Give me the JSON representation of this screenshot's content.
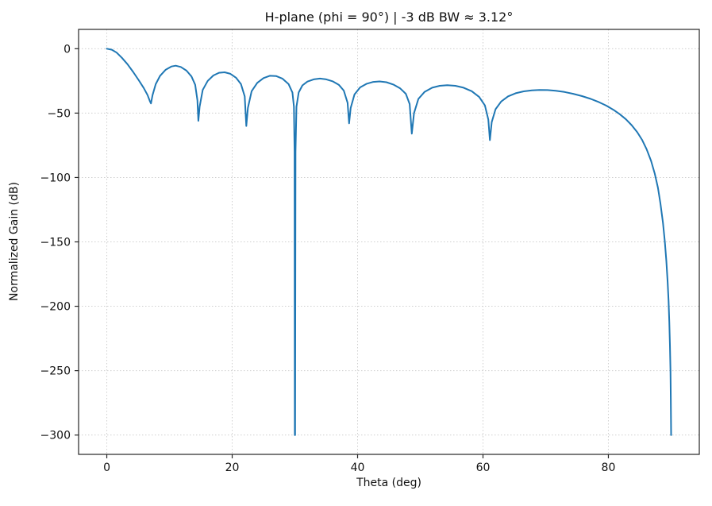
{
  "chart_data": {
    "type": "line",
    "title": "H-plane (phi = 90°)  |  -3 dB BW ≈ 3.12°",
    "xlabel": "Theta (deg)",
    "ylabel": "Normalized Gain (dB)",
    "xlim": [
      -4.5,
      94.5
    ],
    "ylim": [
      -315,
      15
    ],
    "xticks": [
      0,
      20,
      40,
      60,
      80
    ],
    "yticks": [
      0,
      -50,
      -100,
      -150,
      -200,
      -250,
      -300
    ],
    "grid": true,
    "grid_style": "dotted",
    "line_color": "#1f77b4",
    "series": [
      {
        "name": "normalized-gain",
        "points": [
          [
            0,
            0
          ],
          [
            0.8,
            -0.8
          ],
          [
            1.56,
            -3
          ],
          [
            2.4,
            -7
          ],
          [
            3.3,
            -12
          ],
          [
            4.2,
            -18
          ],
          [
            5.1,
            -24.5
          ],
          [
            5.9,
            -30.5
          ],
          [
            6.5,
            -36
          ],
          [
            6.9,
            -41
          ],
          [
            7.05,
            -42.5
          ],
          [
            7.3,
            -36
          ],
          [
            7.8,
            -27.5
          ],
          [
            8.5,
            -21
          ],
          [
            9.4,
            -16.3
          ],
          [
            10.3,
            -13.8
          ],
          [
            11.0,
            -13.2
          ],
          [
            11.8,
            -14.2
          ],
          [
            12.7,
            -17
          ],
          [
            13.5,
            -21.5
          ],
          [
            14.1,
            -28
          ],
          [
            14.45,
            -40
          ],
          [
            14.6,
            -56
          ],
          [
            14.8,
            -45
          ],
          [
            15.3,
            -32
          ],
          [
            16.1,
            -25
          ],
          [
            17.0,
            -20.8
          ],
          [
            17.9,
            -18.7
          ],
          [
            18.8,
            -18.3
          ],
          [
            19.7,
            -19.5
          ],
          [
            20.6,
            -22.5
          ],
          [
            21.4,
            -27.5
          ],
          [
            22.0,
            -37
          ],
          [
            22.25,
            -60
          ],
          [
            22.5,
            -46
          ],
          [
            23.1,
            -33
          ],
          [
            24.0,
            -26.5
          ],
          [
            25.0,
            -22.8
          ],
          [
            26.0,
            -21.0
          ],
          [
            27.0,
            -21.2
          ],
          [
            28.0,
            -23.2
          ],
          [
            29.0,
            -27.5
          ],
          [
            29.6,
            -34
          ],
          [
            29.85,
            -45
          ],
          [
            29.95,
            -80
          ],
          [
            29.98,
            -300
          ],
          [
            30.04,
            -300
          ],
          [
            30.1,
            -80
          ],
          [
            30.25,
            -45
          ],
          [
            30.6,
            -34
          ],
          [
            31.2,
            -28.5
          ],
          [
            32.0,
            -25.5
          ],
          [
            33.0,
            -23.8
          ],
          [
            34.0,
            -23.2
          ],
          [
            35.0,
            -23.8
          ],
          [
            36.0,
            -25.3
          ],
          [
            37.0,
            -28
          ],
          [
            37.8,
            -32.5
          ],
          [
            38.4,
            -42
          ],
          [
            38.65,
            -58
          ],
          [
            38.9,
            -46
          ],
          [
            39.5,
            -35.5
          ],
          [
            40.4,
            -30
          ],
          [
            41.4,
            -27.3
          ],
          [
            42.5,
            -25.8
          ],
          [
            43.5,
            -25.4
          ],
          [
            44.6,
            -26
          ],
          [
            45.7,
            -27.8
          ],
          [
            46.8,
            -30.8
          ],
          [
            47.7,
            -35
          ],
          [
            48.3,
            -43
          ],
          [
            48.65,
            -66
          ],
          [
            49.0,
            -50
          ],
          [
            49.7,
            -39
          ],
          [
            50.7,
            -33.5
          ],
          [
            51.9,
            -30.3
          ],
          [
            53.1,
            -28.8
          ],
          [
            54.3,
            -28.3
          ],
          [
            55.6,
            -28.8
          ],
          [
            56.9,
            -30.3
          ],
          [
            58.2,
            -33
          ],
          [
            59.4,
            -37.5
          ],
          [
            60.3,
            -44
          ],
          [
            60.85,
            -55
          ],
          [
            61.1,
            -71
          ],
          [
            61.4,
            -57
          ],
          [
            62.0,
            -47
          ],
          [
            62.9,
            -41
          ],
          [
            64.0,
            -37
          ],
          [
            65.2,
            -34.6
          ],
          [
            66.5,
            -33.1
          ],
          [
            67.8,
            -32.3
          ],
          [
            69.0,
            -32.0
          ],
          [
            70.3,
            -32.1
          ],
          [
            71.6,
            -32.6
          ],
          [
            73.0,
            -33.6
          ],
          [
            74.4,
            -35
          ],
          [
            75.8,
            -36.8
          ],
          [
            77.2,
            -39
          ],
          [
            78.5,
            -41.5
          ],
          [
            79.7,
            -44.3
          ],
          [
            80.8,
            -47.4
          ],
          [
            81.8,
            -50.8
          ],
          [
            82.8,
            -54.8
          ],
          [
            83.7,
            -59.3
          ],
          [
            84.6,
            -64.8
          ],
          [
            85.4,
            -71
          ],
          [
            86.1,
            -78
          ],
          [
            86.8,
            -87
          ],
          [
            87.4,
            -97
          ],
          [
            87.9,
            -108
          ],
          [
            88.3,
            -120
          ],
          [
            88.7,
            -135
          ],
          [
            89.0,
            -150
          ],
          [
            89.25,
            -165
          ],
          [
            89.45,
            -181
          ],
          [
            89.6,
            -196
          ],
          [
            89.72,
            -212
          ],
          [
            89.82,
            -230
          ],
          [
            89.9,
            -250
          ],
          [
            89.96,
            -272
          ],
          [
            90.0,
            -300
          ]
        ]
      }
    ]
  }
}
